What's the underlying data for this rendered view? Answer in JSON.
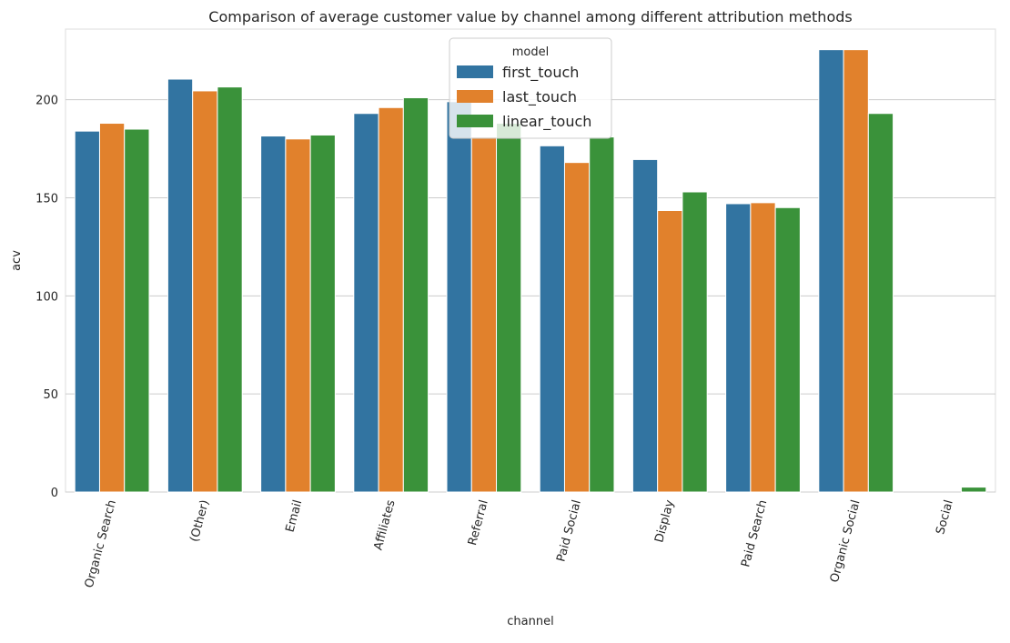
{
  "chart_data": {
    "type": "bar",
    "title": "Comparison of average customer value by channel among different attribution methods",
    "xlabel": "channel",
    "ylabel": "acv",
    "ylim": [
      0,
      236
    ],
    "yticks": [
      0,
      50,
      100,
      150,
      200
    ],
    "grid": true,
    "legend": {
      "title": "model",
      "placement": "top-center"
    },
    "categories": [
      "Organic Search",
      "(Other)",
      "Email",
      "Affiliates",
      "Referral",
      "Paid Social",
      "Display",
      "Paid Search",
      "Organic Social",
      "Social"
    ],
    "series": [
      {
        "name": "first_touch",
        "color": "#3274a1",
        "values": [
          184,
          210.5,
          181.5,
          193,
          199,
          176.5,
          169.5,
          147,
          225.5,
          0
        ]
      },
      {
        "name": "last_touch",
        "color": "#e1812c",
        "values": [
          188,
          204.5,
          180,
          196,
          181,
          168,
          143.5,
          147.5,
          225.5,
          0
        ]
      },
      {
        "name": "linear_touch",
        "color": "#3a923a",
        "values": [
          185,
          206.5,
          182,
          201,
          188,
          181,
          153,
          145,
          193,
          2.5
        ]
      }
    ]
  }
}
